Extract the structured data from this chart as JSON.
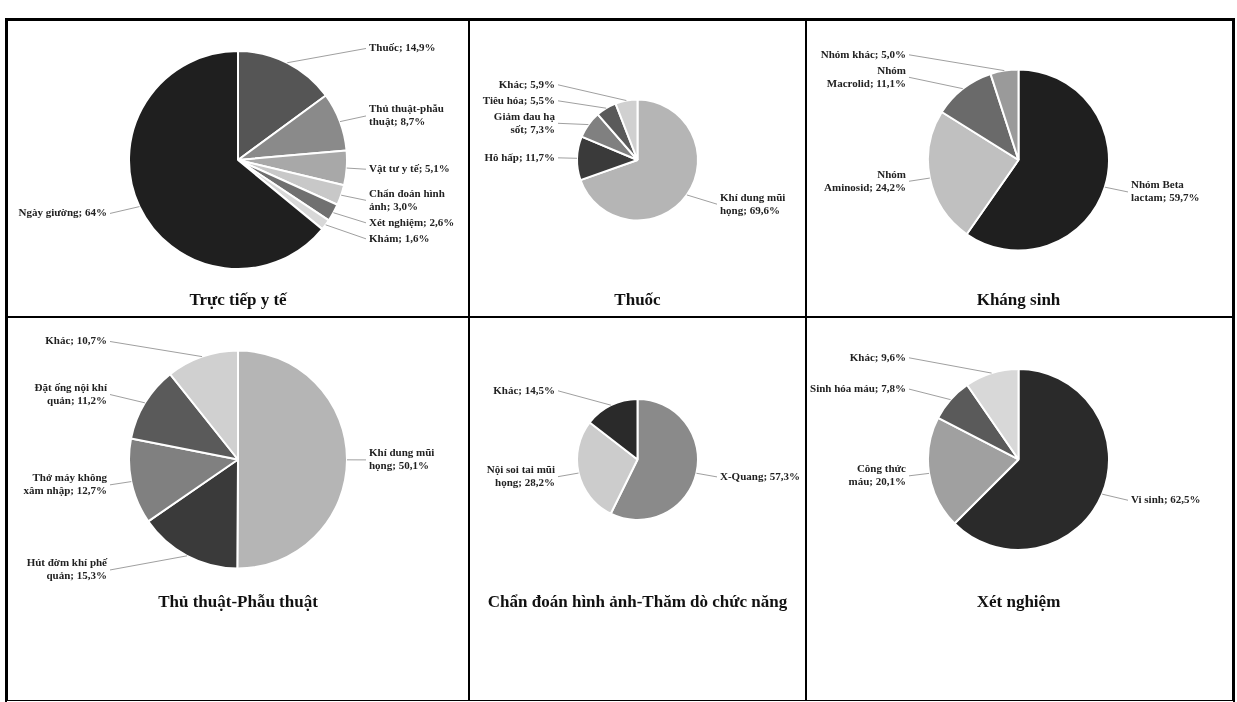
{
  "chart_data": [
    {
      "type": "pie",
      "title": "Trực tiếp y tế",
      "categories": [
        "Thuốc",
        "Thủ thuật-phẫu thuật",
        "Vật tư y tế",
        "Chẩn đoán hình ảnh",
        "Xét nghiệm",
        "Khám",
        "Ngày giường"
      ],
      "values": [
        14.9,
        8.7,
        5.1,
        3.0,
        2.6,
        1.6,
        64
      ],
      "value_labels": [
        "14,9%",
        "8,7%",
        "5,1%",
        "3,0%",
        "2,6%",
        "1,6%",
        "64%"
      ],
      "colors": [
        "#555555",
        "#8a8a8a",
        "#a8a8a8",
        "#c8c8c8",
        "#707070",
        "#d8d8d8",
        "#1f1f1f"
      ]
    },
    {
      "type": "pie",
      "title": "Thuốc",
      "categories": [
        "Khí dung mũi họng",
        "Hô hấp",
        "Giảm đau hạ sốt",
        "Tiêu hóa",
        "Khác"
      ],
      "values": [
        69.6,
        11.7,
        7.3,
        5.5,
        5.9
      ],
      "value_labels": [
        "69,6%",
        "11,7%",
        "7,3%",
        "5,5%",
        "5,9%"
      ],
      "colors": [
        "#b5b5b5",
        "#3a3a3a",
        "#808080",
        "#5a5a5a",
        "#d0d0d0"
      ]
    },
    {
      "type": "pie",
      "title": "Kháng sinh",
      "categories": [
        "Nhóm Beta lactam",
        "Nhóm Aminosid",
        "Nhóm Macrolid",
        "Nhóm khác"
      ],
      "values": [
        59.7,
        24.2,
        11.1,
        5.0
      ],
      "value_labels": [
        "59,7%",
        "24,2%",
        "11,1%",
        "5,0%"
      ],
      "colors": [
        "#1f1f1f",
        "#c0c0c0",
        "#6a6a6a",
        "#9a9a9a"
      ]
    },
    {
      "type": "pie",
      "title": "Thủ thuật-Phẫu thuật",
      "categories": [
        "Khí dung mũi họng",
        "Hút đờm khí phế quản",
        "Thở máy không xâm nhập",
        "Đặt ống nội khí quản",
        "Khác"
      ],
      "values": [
        50.1,
        15.3,
        12.7,
        11.2,
        10.7
      ],
      "value_labels": [
        "50,1%",
        "15,3%",
        "12,7%",
        "11,2%",
        "10,7%"
      ],
      "colors": [
        "#b5b5b5",
        "#3a3a3a",
        "#808080",
        "#5a5a5a",
        "#d0d0d0"
      ]
    },
    {
      "type": "pie",
      "title": "Chẩn đoán hình ảnh-Thăm dò chức năng",
      "categories": [
        "X-Quang",
        "Nội soi tai mũi họng",
        "Khác"
      ],
      "values": [
        57.3,
        28.2,
        14.5
      ],
      "value_labels": [
        "57,3%",
        "28,2%",
        "14,5%"
      ],
      "colors": [
        "#8a8a8a",
        "#cccccc",
        "#2a2a2a"
      ]
    },
    {
      "type": "pie",
      "title": "Xét nghiệm",
      "categories": [
        "Vi sinh",
        "Công thức máu",
        "Sinh hóa máu",
        "Khác"
      ],
      "values": [
        62.5,
        20.1,
        7.8,
        9.6
      ],
      "value_labels": [
        "62,5%",
        "20,1%",
        "7,8%",
        "9,6%"
      ],
      "colors": [
        "#2a2a2a",
        "#a0a0a0",
        "#5a5a5a",
        "#d8d8d8"
      ]
    }
  ]
}
